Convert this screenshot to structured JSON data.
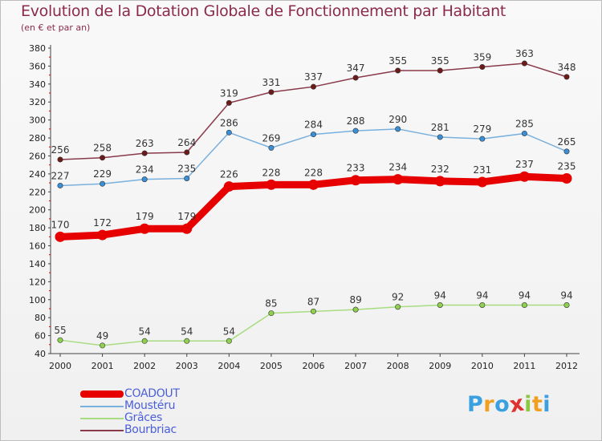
{
  "title": "Evolution de la Dotation Globale de Fonctionnement par Habitant",
  "subtitle": "(en € et par an)",
  "logo": {
    "text": "Proxiti",
    "letters": [
      "P",
      "r",
      "o",
      "x",
      "i",
      "t",
      "i"
    ],
    "letter_colors": [
      "#3aa0e0",
      "#f0a020",
      "#3aa0e0",
      "#e03030",
      "#8cc840",
      "#f0a020",
      "#3aa0e0"
    ]
  },
  "chart_data": {
    "type": "line",
    "title": "Evolution de la Dotation Globale de Fonctionnement par Habitant",
    "subtitle": "(en € et par an)",
    "xlabel": "",
    "ylabel": "",
    "categories": [
      "2000",
      "2001",
      "2002",
      "2003",
      "2004",
      "2005",
      "2006",
      "2007",
      "2008",
      "2009",
      "2010",
      "2011",
      "2012"
    ],
    "ylim": [
      40,
      380
    ],
    "yticks": [
      40,
      60,
      80,
      100,
      120,
      140,
      160,
      180,
      200,
      220,
      240,
      260,
      280,
      300,
      320,
      340,
      360,
      380
    ],
    "grid": false,
    "legend_position": "bottom-left",
    "series": [
      {
        "name": "COADOUT",
        "values": [
          170,
          172,
          179,
          179,
          226,
          228,
          228,
          233,
          234,
          232,
          231,
          237,
          235
        ],
        "color": "#e60000",
        "marker": "#e60000",
        "style": "thick"
      },
      {
        "name": "Moustéru",
        "values": [
          227,
          229,
          234,
          235,
          286,
          269,
          284,
          288,
          290,
          281,
          279,
          285,
          265
        ],
        "color": "#7ab0dc",
        "marker": "#3b8fd6",
        "style": "thin"
      },
      {
        "name": "Grâces",
        "values": [
          55,
          49,
          54,
          54,
          54,
          85,
          87,
          89,
          92,
          94,
          94,
          94,
          94
        ],
        "color": "#a8dc80",
        "marker": "#8fd04e",
        "style": "thin"
      },
      {
        "name": "Bourbriac",
        "values": [
          256,
          258,
          263,
          264,
          319,
          331,
          337,
          347,
          355,
          355,
          359,
          363,
          348
        ],
        "color": "#8a3a4a",
        "marker": "#6e1a1a",
        "style": "thin"
      }
    ]
  }
}
